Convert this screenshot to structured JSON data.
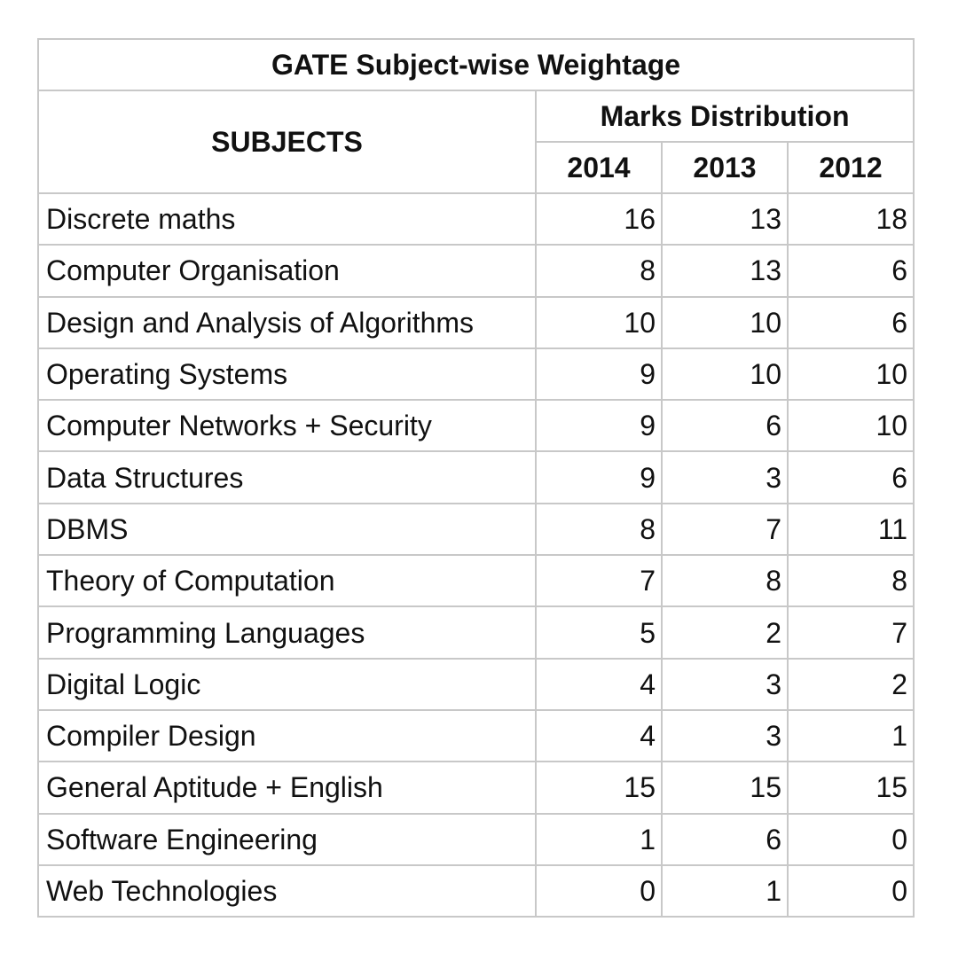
{
  "table": {
    "title": "GATE Subject-wise Weightage",
    "subjects_header": "SUBJECTS",
    "group_header": "Marks Distribution",
    "years": [
      "2014",
      "2013",
      "2012"
    ],
    "rows": [
      {
        "subject": "Discrete maths",
        "values": [
          "16",
          "13",
          "18"
        ]
      },
      {
        "subject": "Computer Organisation",
        "values": [
          "8",
          "13",
          "6"
        ]
      },
      {
        "subject": "Design and Analysis of Algorithms",
        "values": [
          "10",
          "10",
          "6"
        ]
      },
      {
        "subject": "Operating Systems",
        "values": [
          "9",
          "10",
          "10"
        ]
      },
      {
        "subject": "Computer Networks + Security",
        "values": [
          "9",
          "6",
          "10"
        ]
      },
      {
        "subject": "Data Structures",
        "values": [
          "9",
          "3",
          "6"
        ]
      },
      {
        "subject": "DBMS",
        "values": [
          "8",
          "7",
          "11"
        ]
      },
      {
        "subject": "Theory of Computation",
        "values": [
          "7",
          "8",
          "8"
        ]
      },
      {
        "subject": "Programming Languages",
        "values": [
          "5",
          "2",
          "7"
        ]
      },
      {
        "subject": "Digital Logic",
        "values": [
          "4",
          "3",
          "2"
        ]
      },
      {
        "subject": "Compiler Design",
        "values": [
          "4",
          "3",
          "1"
        ]
      },
      {
        "subject": "General Aptitude + English",
        "values": [
          "15",
          "15",
          "15"
        ]
      },
      {
        "subject": "Software Engineering",
        "values": [
          "1",
          "6",
          "0"
        ]
      },
      {
        "subject": "Web Technologies",
        "values": [
          "0",
          "1",
          "0"
        ]
      }
    ]
  }
}
